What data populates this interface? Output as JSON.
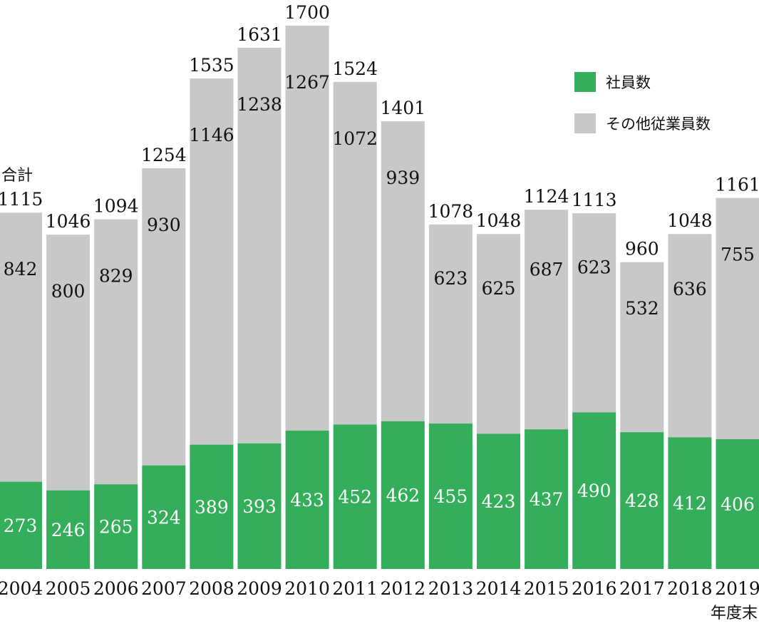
{
  "chart_data": {
    "type": "bar",
    "stacked": true,
    "categories": [
      "2004",
      "2005",
      "2006",
      "2007",
      "2008",
      "2009",
      "2010",
      "2011",
      "2012",
      "2013",
      "2014",
      "2015",
      "2016",
      "2017",
      "2018",
      "2019"
    ],
    "series": [
      {
        "name": "社員数",
        "color": "#35ae5b",
        "values": [
          273,
          246,
          265,
          324,
          389,
          393,
          433,
          452,
          462,
          455,
          423,
          437,
          490,
          428,
          412,
          406
        ]
      },
      {
        "name": "その他従業員数",
        "color": "#c8c8c8",
        "values": [
          842,
          800,
          829,
          930,
          1146,
          1238,
          1267,
          1072,
          939,
          623,
          625,
          687,
          623,
          532,
          636,
          755
        ]
      }
    ],
    "totals": [
      1115,
      1046,
      1094,
      1254,
      1535,
      1631,
      1700,
      1524,
      1401,
      1078,
      1048,
      1124,
      1113,
      960,
      1048,
      1161
    ],
    "total_label": "合計",
    "xlabel": "年度末",
    "ylim": [
      0,
      1700
    ],
    "legend_position": "top-right",
    "grid": false
  }
}
